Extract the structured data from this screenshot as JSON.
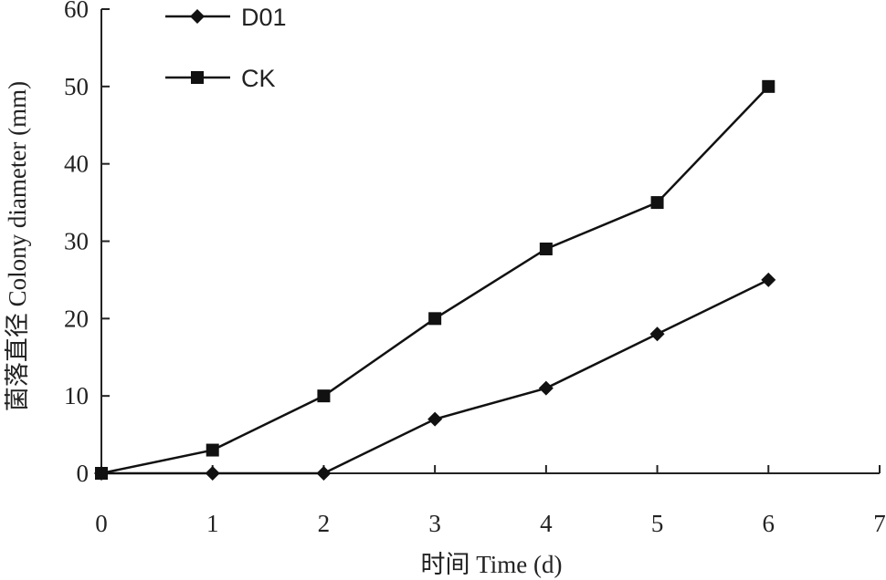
{
  "chart_data": {
    "type": "line",
    "xlabel": "时间 Time (d)",
    "ylabel": "菌落直径 Colony diameter (mm)",
    "xlim": [
      0,
      7
    ],
    "ylim": [
      0,
      60
    ],
    "xticks": [
      "0",
      "1",
      "2",
      "3",
      "4",
      "5",
      "6",
      "7"
    ],
    "yticks": [
      "0",
      "10",
      "20",
      "30",
      "40",
      "50",
      "60"
    ],
    "grid": false,
    "legend_position": "top-left",
    "series": [
      {
        "name": "D01",
        "marker": "diamond",
        "color": "#111111",
        "x": [
          0,
          1,
          2,
          3,
          4,
          5,
          6
        ],
        "y": [
          0,
          0,
          0,
          7,
          11,
          18,
          25
        ]
      },
      {
        "name": "CK",
        "marker": "square",
        "color": "#111111",
        "x": [
          0,
          1,
          2,
          3,
          4,
          5,
          6
        ],
        "y": [
          0,
          3,
          10,
          20,
          29,
          35,
          50
        ]
      }
    ]
  }
}
